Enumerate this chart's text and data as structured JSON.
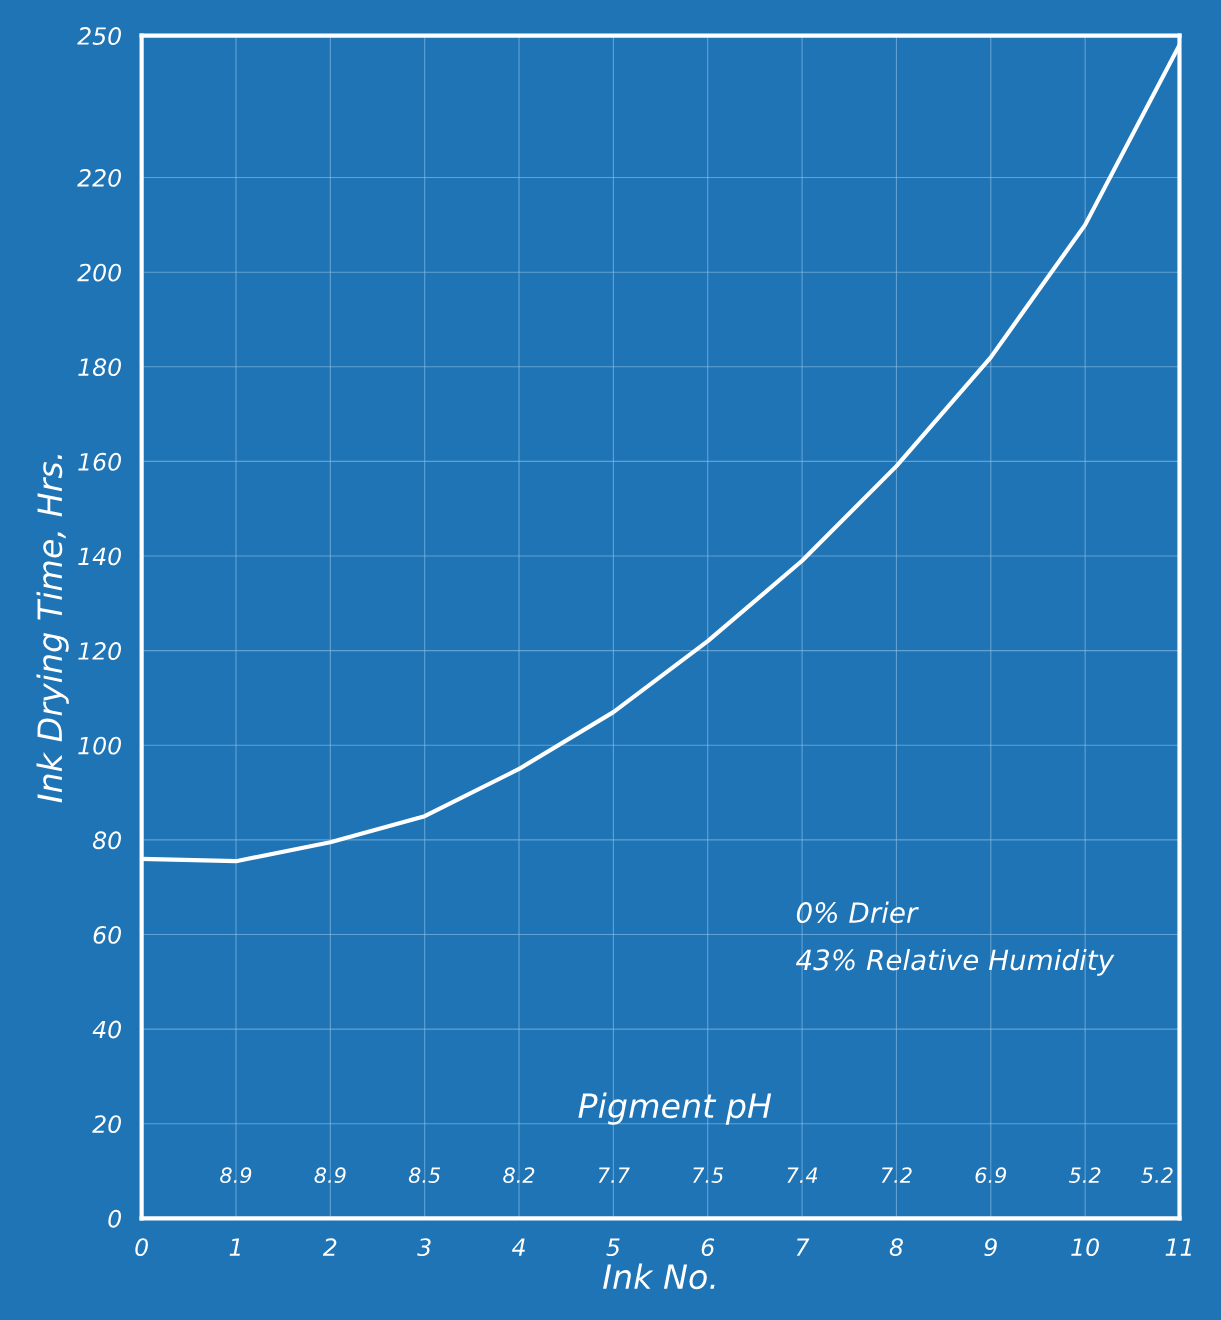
{
  "chart_data": {
    "type": "line",
    "xlabel": "Ink No.",
    "ylabel": "Ink Drying Time, Hrs.",
    "x": [
      0,
      1,
      2,
      3,
      4,
      5,
      6,
      7,
      8,
      9,
      10,
      11
    ],
    "series": [
      {
        "color": "#ffffff",
        "values": [
          76,
          75.5,
          79.5,
          85,
          95,
          107,
          122,
          139,
          159,
          182,
          210,
          248
        ]
      }
    ],
    "xlim": [
      0,
      11
    ],
    "xticks": [
      0,
      1,
      2,
      3,
      4,
      5,
      6,
      7,
      8,
      9,
      10,
      11
    ],
    "ylim": [
      0,
      250
    ],
    "yticks": [
      0,
      20,
      40,
      60,
      80,
      100,
      120,
      140,
      160,
      180,
      200,
      220,
      250
    ],
    "annotations": [
      "0% Drier",
      "43% Relative Humidity",
      "Pigment pH",
      "8.9",
      "8.9",
      "8.5",
      "8.2",
      "7.7",
      "7.5",
      "7.4",
      "7.2",
      "6.9",
      "5.2",
      "5.2"
    ],
    "grid": true,
    "marker": "none",
    "line_style": "solid"
  }
}
